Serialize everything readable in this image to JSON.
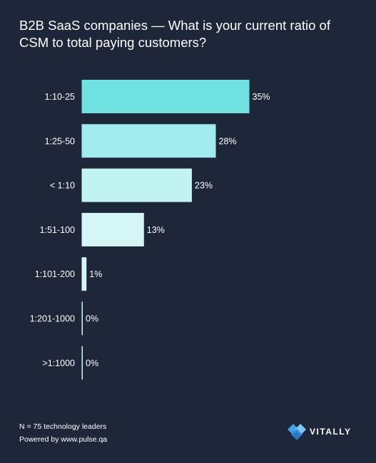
{
  "title": "B2B SaaS companies — What is your current ratio of CSM to total paying customers?",
  "chart_data": {
    "type": "bar",
    "orientation": "horizontal",
    "categories": [
      "1:10-25",
      "1:25-50",
      "< 1:10",
      "1:51-100",
      "1:101-200",
      "1:201-1000",
      ">1:1000"
    ],
    "values": [
      35,
      28,
      23,
      13,
      1,
      0,
      0
    ],
    "value_labels": [
      "35%",
      "28%",
      "23%",
      "13%",
      "1%",
      "0%",
      "0%"
    ],
    "unit": "%",
    "colors": [
      "#6fe1e1",
      "#a0ecec",
      "#c2f3f3",
      "#d4f6f6",
      "#d4f6f6",
      "#d4f6f6",
      "#d4f6f6"
    ],
    "grid": false,
    "legend": "none"
  },
  "footer": {
    "sample": "N = 75 technology leaders",
    "source": "Powered by www.pulse.qa"
  },
  "brand": {
    "name": "VITALLY",
    "icon": "vitally-logo-icon",
    "colors": [
      "#3fa0e6",
      "#7ec8f2",
      "#2f7fd0"
    ]
  }
}
